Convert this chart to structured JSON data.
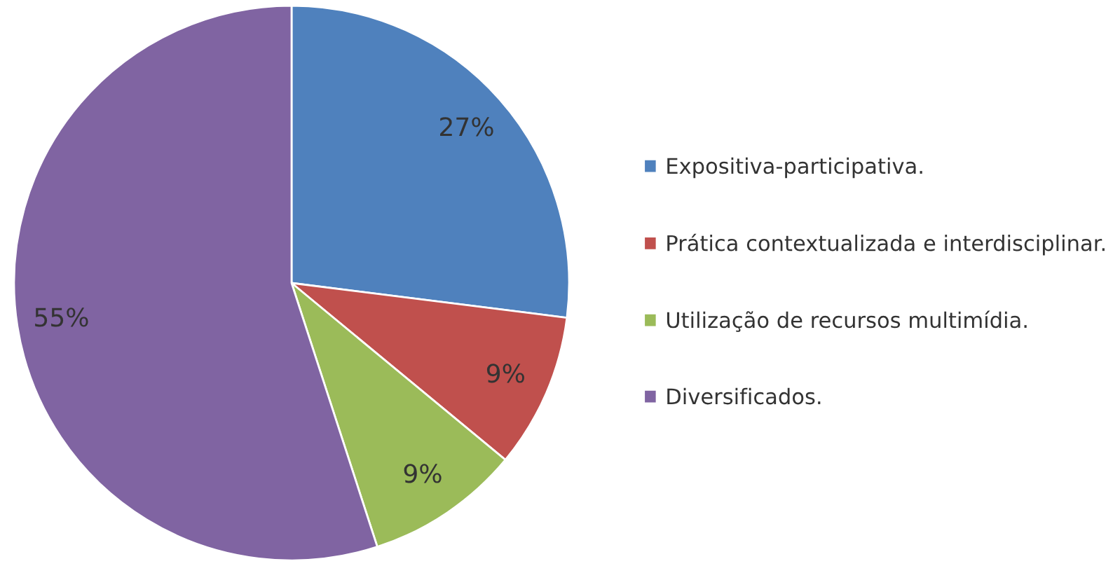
{
  "chart_data": {
    "type": "pie",
    "categories": [
      "Expositiva-participativa.",
      "Prática contextualizada e interdisciplinar.",
      "Utilização de recursos multimídia.",
      "Diversificados."
    ],
    "values": [
      27,
      9,
      9,
      55
    ],
    "colors": [
      "#4f81bd",
      "#c0504d",
      "#9bbb59",
      "#8064a2"
    ],
    "value_labels": [
      "27%",
      "9%",
      "9%",
      "55%"
    ],
    "legend": "right"
  }
}
